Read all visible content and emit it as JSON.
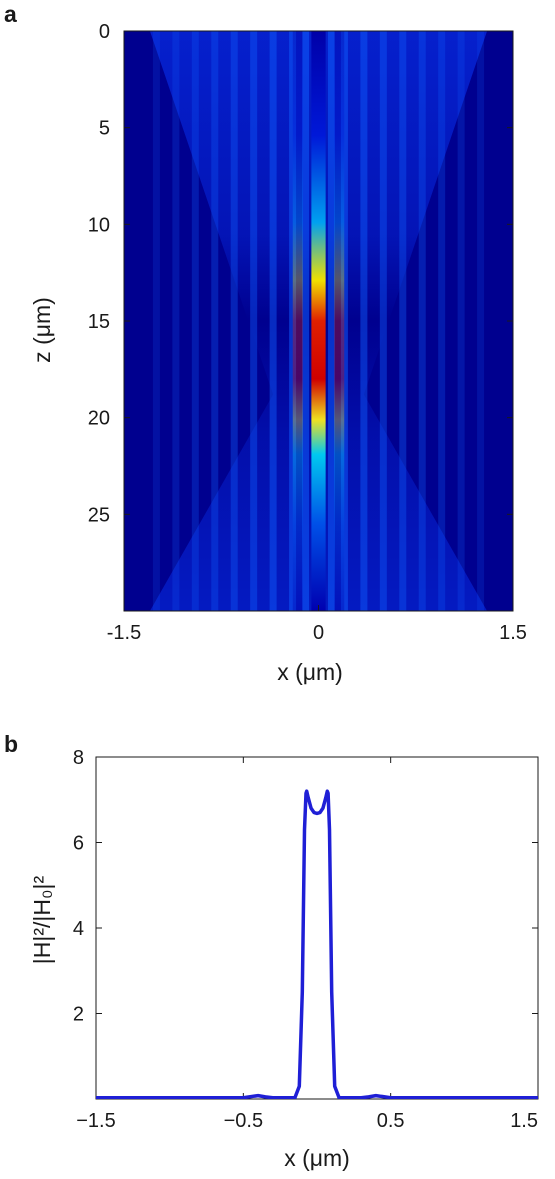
{
  "chart_data": [
    {
      "panel": "a",
      "type": "heatmap",
      "xlabel": "x (μm)",
      "ylabel": "z (μm)",
      "xlim": [
        -1.5,
        1.5
      ],
      "ylim": [
        0,
        30
      ],
      "y_axis_reversed": true,
      "xticks": [
        -1.5,
        0,
        1.5
      ],
      "xtick_labels": [
        "-1.5",
        "0",
        "1.5"
      ],
      "yticks": [
        0,
        5,
        10,
        15,
        20,
        25
      ],
      "ytick_labels": [
        "0",
        "5",
        "10",
        "15",
        "20",
        "25"
      ],
      "colormap": "jet",
      "background_color": "#00008f",
      "description_of_field": {
        "focus_z": 18.8,
        "focus_x": 0,
        "peak_z_span": [
          15,
          23
        ]
      },
      "stripe_columns": [
        -1.25,
        -1.1,
        -0.95,
        -0.8,
        -0.65,
        -0.5,
        -0.35,
        -0.2,
        -0.1,
        0,
        0.1,
        0.2,
        0.35,
        0.5,
        0.65,
        0.8,
        0.95,
        1.1,
        1.25
      ]
    },
    {
      "panel": "b",
      "type": "line",
      "xlabel": "x (μm)",
      "ylabel": "|H|²/|H₀|²",
      "xlim": [
        -1.5,
        1.5
      ],
      "ylim": [
        0,
        8
      ],
      "xticks": [
        -1.5,
        -0.5,
        0.5,
        1.5
      ],
      "xtick_labels": [
        "−1.5",
        "−0.5",
        "0.5",
        "1.5"
      ],
      "yticks": [
        2,
        4,
        6,
        8
      ],
      "ytick_labels": [
        "2",
        "4",
        "6",
        "8"
      ],
      "line_color": "#1f1fd6",
      "series": [
        {
          "x": [
            -1.5,
            -0.5,
            -0.4,
            -0.35,
            -0.3,
            -0.2,
            -0.15,
            -0.12,
            -0.1,
            -0.085,
            -0.075,
            -0.07,
            -0.06,
            -0.04,
            -0.02,
            0,
            0.02,
            0.04,
            0.06,
            0.07,
            0.075,
            0.085,
            0.1,
            0.12,
            0.15,
            0.2,
            0.3,
            0.35,
            0.4,
            0.5,
            1.5
          ],
          "y": [
            0.03,
            0.03,
            0.08,
            0.05,
            0.03,
            0.03,
            0.03,
            0.3,
            2.5,
            6.3,
            7.15,
            7.2,
            7.05,
            6.8,
            6.7,
            6.68,
            6.7,
            6.8,
            7.05,
            7.2,
            7.15,
            6.3,
            2.5,
            0.3,
            0.03,
            0.03,
            0.03,
            0.05,
            0.08,
            0.03,
            0.03
          ]
        }
      ]
    }
  ],
  "panel_labels": [
    "a",
    "b"
  ]
}
